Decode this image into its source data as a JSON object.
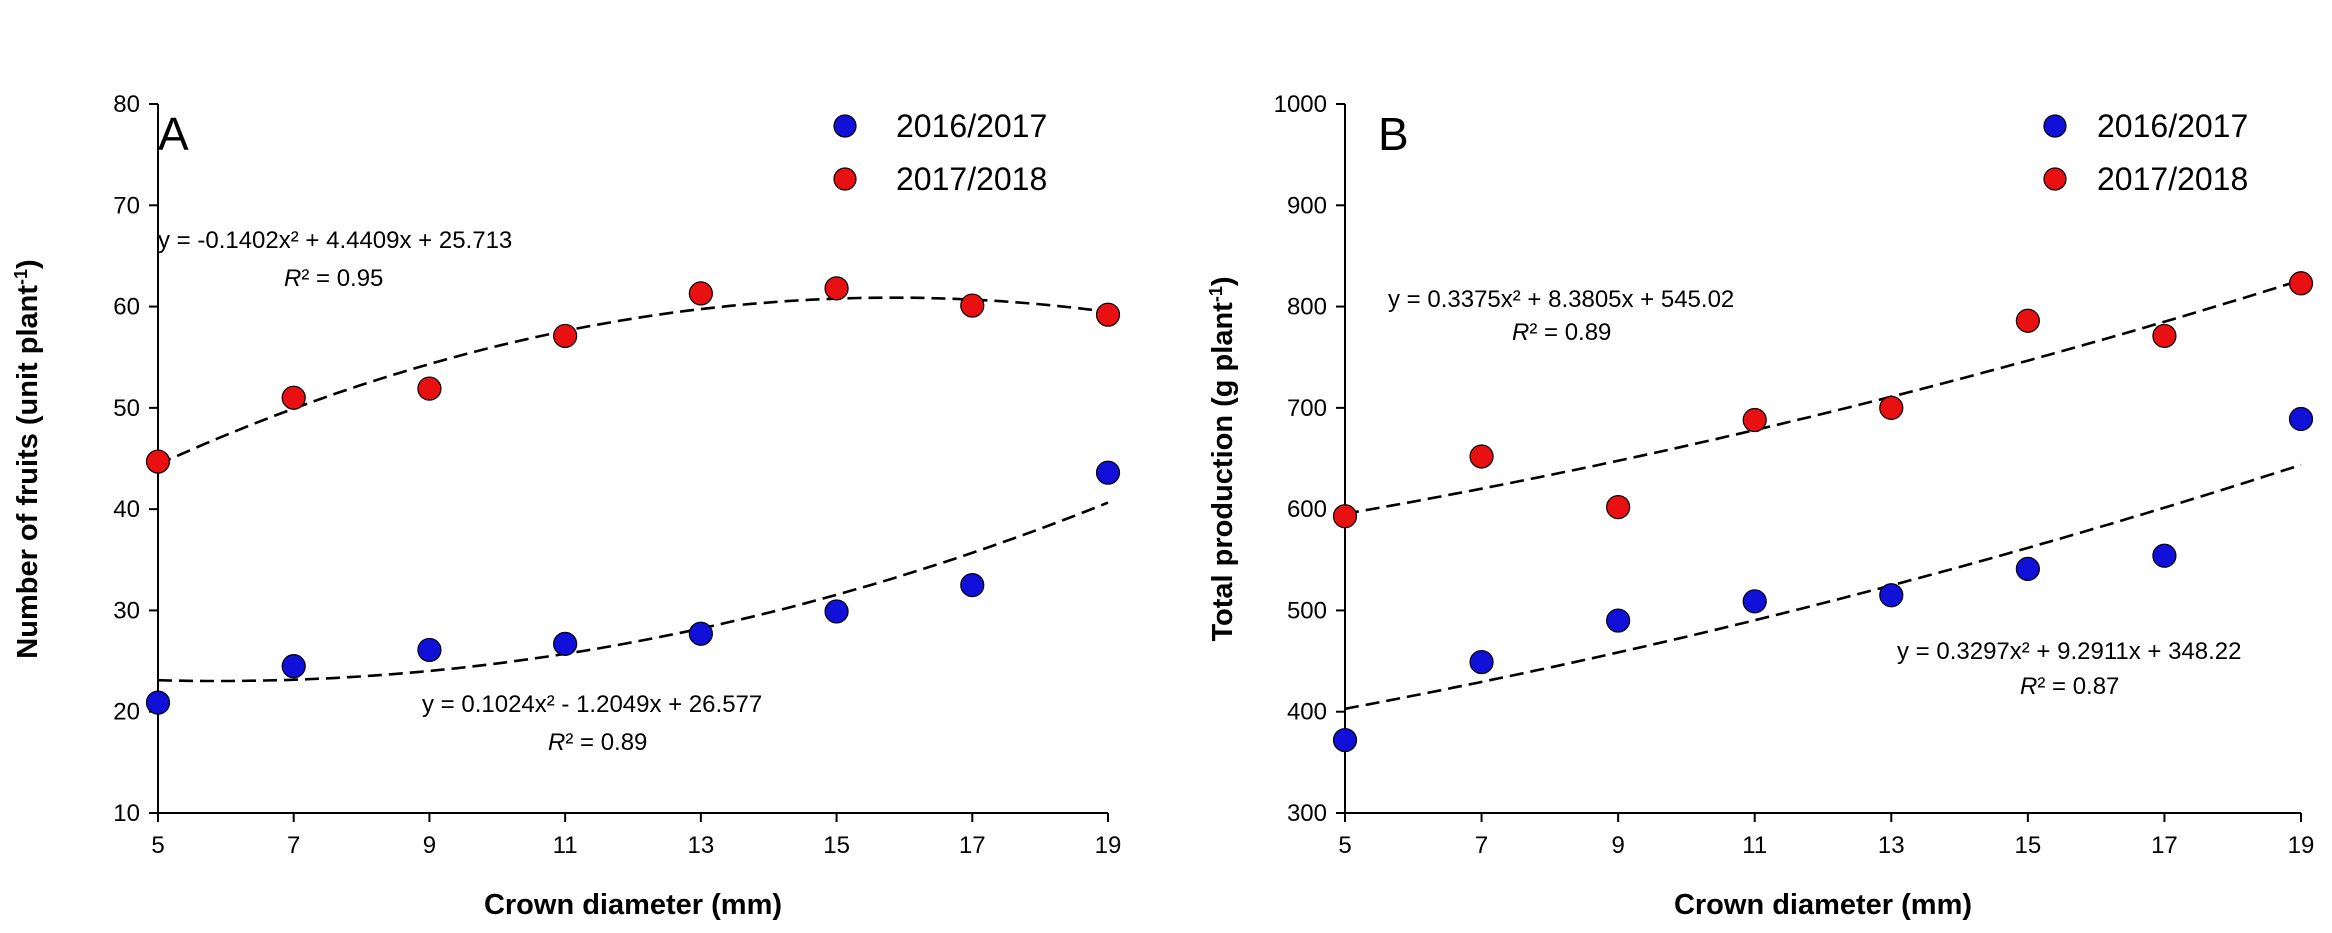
{
  "chart_data": [
    {
      "type": "scatter",
      "panel_label": "A",
      "title": "",
      "xlabel": "Crown diameter (mm)",
      "ylabel": "Number of fruits (unit plant",
      "ylabel_sup": "-1",
      "ylabel_close": ")",
      "xlim": [
        5,
        19
      ],
      "ylim": [
        10,
        80
      ],
      "xticks": [
        5,
        7,
        9,
        11,
        13,
        15,
        17,
        19
      ],
      "yticks": [
        10,
        20,
        30,
        40,
        50,
        60,
        70,
        80
      ],
      "legend": {
        "position": "top-right",
        "entries": [
          "2016/2017",
          "2017/2018"
        ]
      },
      "series": [
        {
          "name": "2016/2017",
          "color": "#1010d8",
          "x": [
            5,
            7,
            9,
            11,
            13,
            15,
            17,
            19
          ],
          "y": [
            20.9,
            24.5,
            26.1,
            26.7,
            27.7,
            29.9,
            32.5,
            43.6
          ],
          "fit": {
            "a": 0.1024,
            "b": -1.2049,
            "c": 26.577
          },
          "equation": "y = 0.1024x² - 1.2049x + 26.577",
          "r2_label": "R",
          "r2_value": "² = 0.89"
        },
        {
          "name": "2017/2018",
          "color": "#e81010",
          "x": [
            5,
            7,
            9,
            11,
            13,
            15,
            17,
            19
          ],
          "y": [
            44.7,
            51.0,
            51.9,
            57.1,
            61.3,
            61.8,
            60.1,
            59.2
          ],
          "fit": {
            "a": -0.1402,
            "b": 4.4409,
            "c": 25.713
          },
          "equation": "y = -0.1402x² + 4.4409x + 25.713",
          "r2_label": "R",
          "r2_value": "² = 0.95"
        }
      ]
    },
    {
      "type": "scatter",
      "panel_label": "B",
      "title": "",
      "xlabel": "Crown diameter (mm)",
      "ylabel": "Total production (g plant",
      "ylabel_sup": "-1",
      "ylabel_close": ")",
      "xlim": [
        5,
        19
      ],
      "ylim": [
        300,
        1000
      ],
      "xticks": [
        5,
        7,
        9,
        11,
        13,
        15,
        17,
        19
      ],
      "yticks": [
        300,
        400,
        500,
        600,
        700,
        800,
        900,
        1000
      ],
      "legend": {
        "position": "top-right",
        "entries": [
          "2016/2017",
          "2017/2018"
        ]
      },
      "series": [
        {
          "name": "2016/2017",
          "color": "#1010d8",
          "x": [
            5,
            7,
            9,
            11,
            13,
            15,
            17,
            19
          ],
          "y": [
            372,
            449,
            490,
            509,
            515,
            541,
            554,
            689
          ],
          "fit": {
            "a": 0.3297,
            "b": 9.2911,
            "c": 348.22
          },
          "equation": "y = 0.3297x² + 9.2911x + 348.22",
          "r2_label": "R",
          "r2_value": "² = 0.87"
        },
        {
          "name": "2017/2018",
          "color": "#e81010",
          "x": [
            5,
            7,
            9,
            11,
            13,
            15,
            17,
            19
          ],
          "y": [
            593,
            652,
            602,
            688,
            700,
            786,
            771,
            823
          ],
          "fit": {
            "a": 0.3375,
            "b": 8.3805,
            "c": 545.02
          },
          "equation": "y = 0.3375x² + 8.3805x + 545.02",
          "r2_label": "R",
          "r2_value": "² = 0.89"
        }
      ]
    }
  ]
}
